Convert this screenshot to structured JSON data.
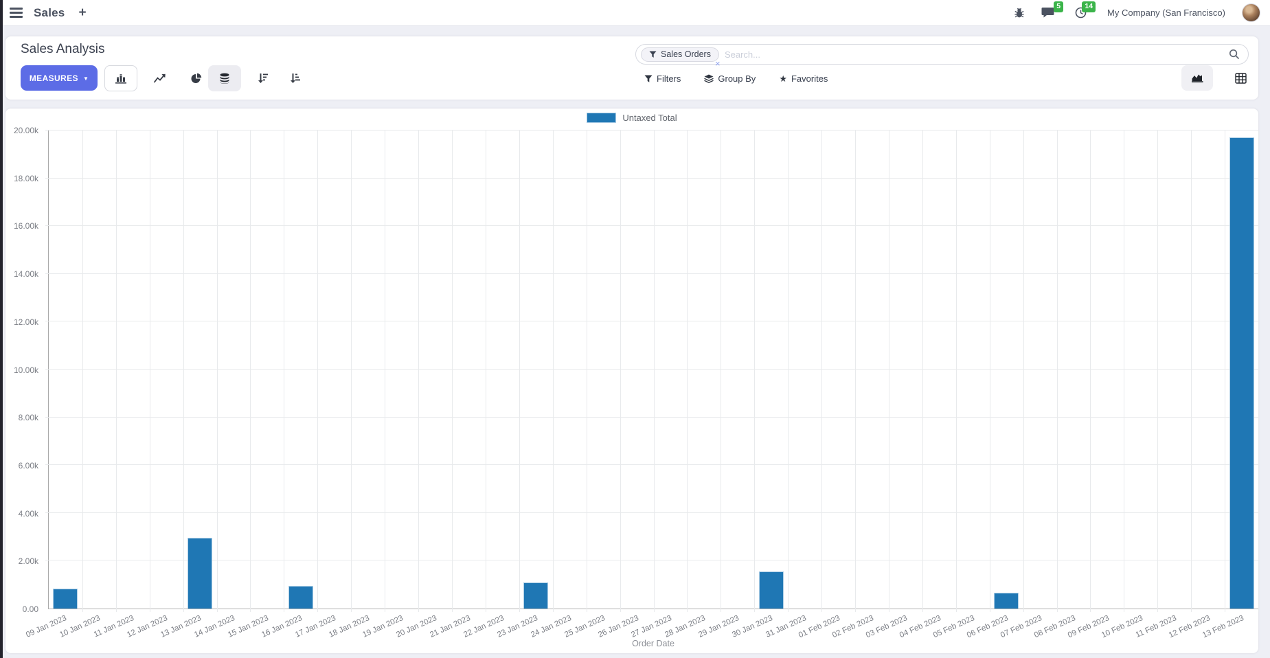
{
  "header": {
    "app_title": "Sales",
    "messages_badge": "5",
    "activities_badge": "14",
    "company": "My Company (San Francisco)"
  },
  "control_panel": {
    "title": "Sales Analysis",
    "measures_label": "MEASURES",
    "search": {
      "facet": "Sales Orders",
      "placeholder": "Search..."
    },
    "filters_label": "Filters",
    "group_by_label": "Group By",
    "favorites_label": "Favorites"
  },
  "icons": {
    "plus": "+",
    "caret_down": "▼",
    "star": "★",
    "facet_close": "×"
  },
  "colors": {
    "accent_indigo": "#5c6ce6",
    "badge_green": "#3bb44a",
    "bar_blue": "#1f77b4"
  },
  "chart_data": {
    "type": "bar",
    "title": "",
    "xlabel": "Order Date",
    "ylabel": "",
    "ylim": [
      0,
      20000
    ],
    "grid": true,
    "legend_position": "top",
    "ytick_values": [
      0,
      2000,
      4000,
      6000,
      8000,
      10000,
      12000,
      14000,
      16000,
      18000,
      20000
    ],
    "ytick_labels": [
      "0.00",
      "2.00k",
      "4.00k",
      "6.00k",
      "8.00k",
      "10.00k",
      "12.00k",
      "14.00k",
      "16.00k",
      "18.00k",
      "20.00k"
    ],
    "categories": [
      "09 Jan 2023",
      "10 Jan 2023",
      "11 Jan 2023",
      "12 Jan 2023",
      "13 Jan 2023",
      "14 Jan 2023",
      "15 Jan 2023",
      "16 Jan 2023",
      "17 Jan 2023",
      "18 Jan 2023",
      "19 Jan 2023",
      "20 Jan 2023",
      "21 Jan 2023",
      "22 Jan 2023",
      "23 Jan 2023",
      "24 Jan 2023",
      "25 Jan 2023",
      "26 Jan 2023",
      "27 Jan 2023",
      "28 Jan 2023",
      "29 Jan 2023",
      "30 Jan 2023",
      "31 Jan 2023",
      "01 Feb 2023",
      "02 Feb 2023",
      "03 Feb 2023",
      "04 Feb 2023",
      "05 Feb 2023",
      "06 Feb 2023",
      "07 Feb 2023",
      "08 Feb 2023",
      "09 Feb 2023",
      "10 Feb 2023",
      "11 Feb 2023",
      "12 Feb 2023",
      "13 Feb 2023"
    ],
    "series": [
      {
        "name": "Untaxed Total",
        "color": "#1f77b4",
        "values": [
          820,
          0,
          0,
          0,
          2950,
          0,
          0,
          950,
          0,
          0,
          0,
          0,
          0,
          0,
          1100,
          0,
          0,
          0,
          0,
          0,
          0,
          1550,
          0,
          0,
          0,
          0,
          0,
          0,
          670,
          0,
          0,
          0,
          0,
          0,
          0,
          19700
        ]
      }
    ]
  }
}
